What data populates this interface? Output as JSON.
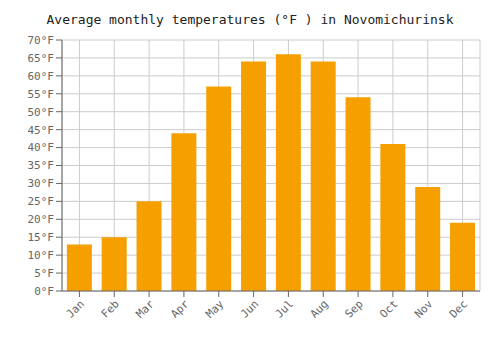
{
  "chart_data": {
    "type": "bar",
    "title": "Average monthly temperatures (°F ) in Novomichurinsk",
    "categories": [
      "Jan",
      "Feb",
      "Mar",
      "Apr",
      "May",
      "Jun",
      "Jul",
      "Aug",
      "Sep",
      "Oct",
      "Nov",
      "Dec"
    ],
    "values": [
      13,
      15,
      25,
      44,
      57,
      64,
      66,
      64,
      54,
      41,
      29,
      19
    ],
    "color": "#F5A000",
    "ylim": [
      0,
      70
    ],
    "yticks": [
      {
        "value": 0,
        "label": "0°F"
      },
      {
        "value": 5,
        "label": "5°F"
      },
      {
        "value": 10,
        "label": "10°F"
      },
      {
        "value": 15,
        "label": "15°F"
      },
      {
        "value": 20,
        "label": "20°F"
      },
      {
        "value": 25,
        "label": "25°F"
      },
      {
        "value": 30,
        "label": "30°F"
      },
      {
        "value": 35,
        "label": "35°F"
      },
      {
        "value": 40,
        "label": "40°F"
      },
      {
        "value": 45,
        "label": "45°F"
      },
      {
        "value": 50,
        "label": "50°F"
      },
      {
        "value": 55,
        "label": "55°F"
      },
      {
        "value": 60,
        "label": "60°F"
      },
      {
        "value": 65,
        "label": "65°F"
      },
      {
        "value": 70,
        "label": "70°F"
      }
    ],
    "grid": true
  }
}
